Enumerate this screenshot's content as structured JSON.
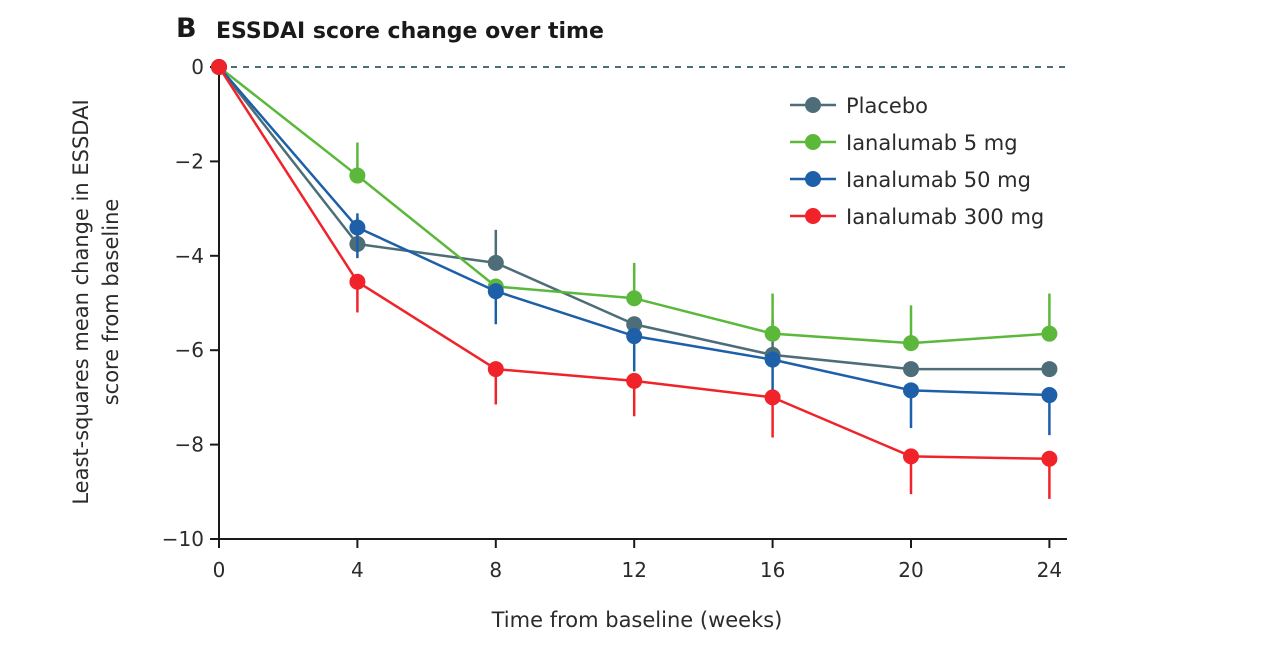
{
  "chart_data": {
    "type": "line",
    "panel_label": "B",
    "title": "ESSDAI score change over time",
    "xlabel": "Time from baseline (weeks)",
    "ylabel_lines": [
      "Least-squares mean change in ESSDAI",
      "score from baseline"
    ],
    "x": [
      0,
      4,
      8,
      12,
      16,
      20,
      24
    ],
    "x_tick_labels": [
      "0",
      "4",
      "8",
      "12",
      "16",
      "20",
      "24"
    ],
    "y_ticks": [
      0,
      -2,
      -4,
      -6,
      -8,
      -10
    ],
    "y_tick_labels": [
      "0",
      "−2",
      "−4",
      "−6",
      "−8",
      "−10"
    ],
    "xlim": [
      0,
      25
    ],
    "ylim": [
      -10,
      0
    ],
    "reference_line": {
      "y": 0,
      "style": "dashed"
    },
    "legend_position": "top-right",
    "series": [
      {
        "name": "Placebo",
        "color": "#4d6e78",
        "values": [
          0,
          -3.75,
          -4.15,
          -5.45,
          -6.1,
          -6.4,
          -6.4
        ],
        "err_up": [
          0,
          0.55,
          0.7,
          0,
          0.75,
          0,
          0
        ],
        "err_down": [
          0,
          0,
          0,
          0,
          0,
          0,
          0
        ]
      },
      {
        "name": "Ianalumab 5 mg",
        "color": "#5bb83a",
        "values": [
          0,
          -2.3,
          -4.65,
          -4.9,
          -5.65,
          -5.85,
          -5.65
        ],
        "err_up": [
          0,
          0.7,
          0,
          0.75,
          0.85,
          0.8,
          0.85
        ],
        "err_down": [
          0,
          0,
          0,
          0,
          0,
          0,
          0
        ]
      },
      {
        "name": "Ianalumab 50 mg",
        "color": "#1d5fa8",
        "values": [
          0,
          -3.4,
          -4.75,
          -5.7,
          -6.2,
          -6.85,
          -6.95
        ],
        "err_up": [
          0,
          0.3,
          0,
          0,
          0,
          0,
          0
        ],
        "err_down": [
          0,
          0.65,
          0.7,
          0.75,
          0.75,
          0.8,
          0.85
        ]
      },
      {
        "name": "Ianalumab 300 mg",
        "color": "#f0232a",
        "values": [
          0,
          -4.55,
          -6.4,
          -6.65,
          -7.0,
          -8.25,
          -8.3
        ],
        "err_up": [
          0,
          0,
          0,
          0,
          0,
          0,
          0
        ],
        "err_down": [
          0,
          0.65,
          0.75,
          0.75,
          0.85,
          0.8,
          0.85
        ]
      }
    ]
  }
}
